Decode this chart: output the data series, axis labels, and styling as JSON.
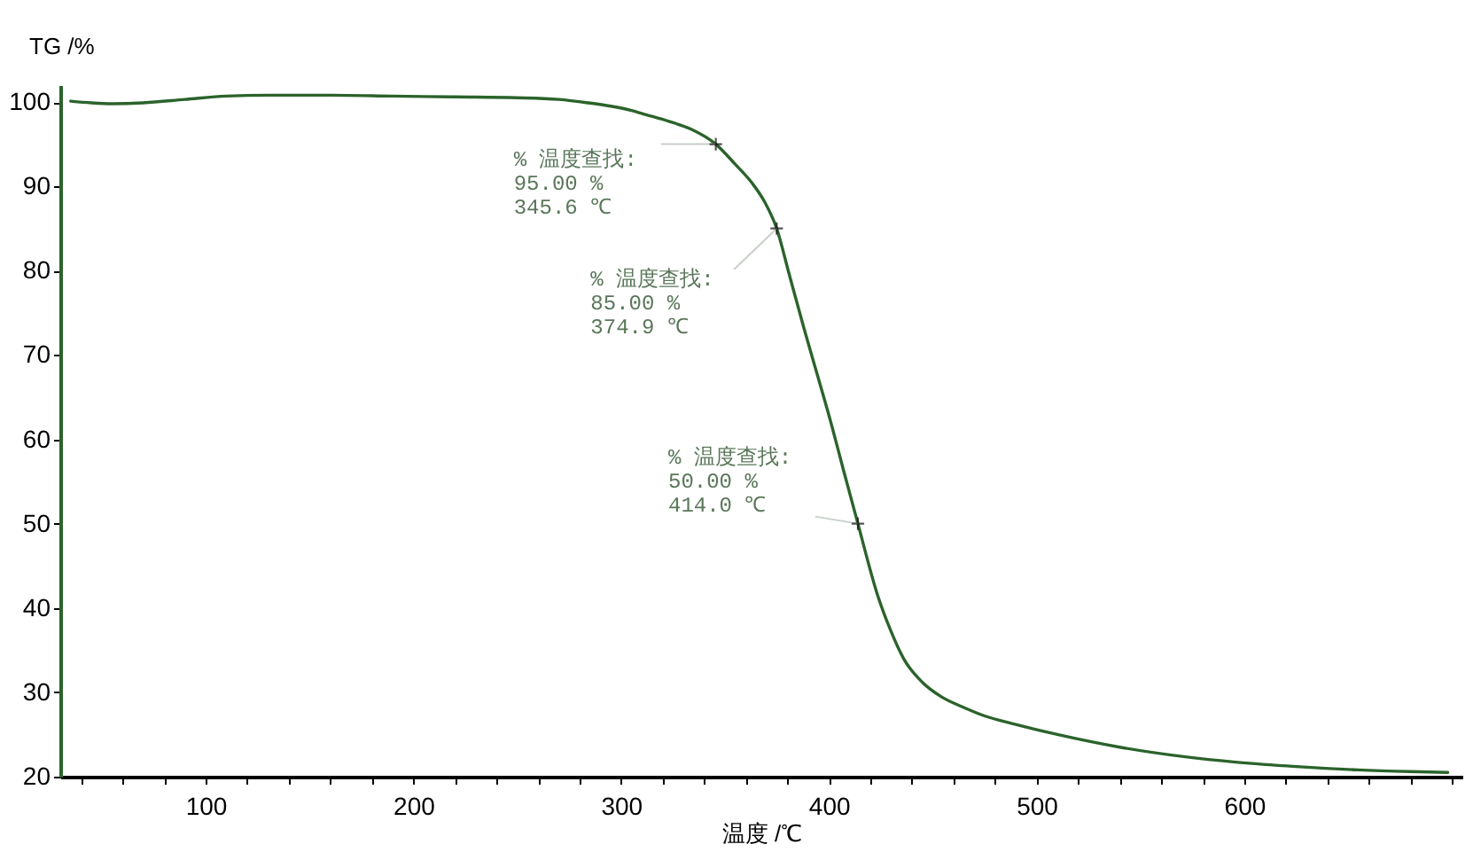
{
  "chart_data": {
    "type": "line",
    "xlabel": "温度 /℃",
    "ylabel": "TG /%",
    "x": [
      35,
      45,
      55,
      70,
      90,
      110,
      130,
      160,
      190,
      220,
      250,
      270,
      284,
      295,
      305,
      312,
      323,
      333.5,
      345.6,
      355,
      363,
      369,
      374.9,
      381,
      388,
      395,
      401,
      407,
      414,
      423.5,
      430,
      436,
      445,
      454,
      465,
      475,
      490,
      510,
      540,
      570,
      597,
      625,
      655,
      680,
      698
    ],
    "series": [
      {
        "color": "#2b632b",
        "values": [
          100.1,
          99.9,
          99.8,
          99.9,
          100.3,
          100.7,
          100.8,
          100.8,
          100.7,
          100.6,
          100.5,
          100.3,
          99.9,
          99.5,
          99.0,
          98.5,
          97.7,
          96.8,
          95.0,
          92.6,
          90.4,
          88.2,
          85.0,
          79.5,
          73.2,
          67.2,
          62.0,
          56.4,
          50.0,
          41.5,
          37.2,
          34.0,
          31.2,
          29.5,
          28.2,
          27.2,
          26.2,
          25.0,
          23.5,
          22.4,
          21.7,
          21.2,
          20.8,
          20.6,
          20.5
        ]
      }
    ],
    "xlim": [
      30,
      705
    ],
    "ylim": [
      20,
      102
    ],
    "xticks": [
      {
        "value": 40,
        "label": null
      },
      {
        "value": 60,
        "label": null
      },
      {
        "value": 80,
        "label": null
      },
      100,
      {
        "value": 120,
        "label": null
      },
      {
        "value": 140,
        "label": null
      },
      {
        "value": 160,
        "label": null
      },
      {
        "value": 180,
        "label": null
      },
      200,
      {
        "value": 220,
        "label": null
      },
      {
        "value": 240,
        "label": null
      },
      {
        "value": 260,
        "label": null
      },
      {
        "value": 280,
        "label": null
      },
      300,
      {
        "value": 320,
        "label": null
      },
      {
        "value": 340,
        "label": null
      },
      {
        "value": 360,
        "label": null
      },
      {
        "value": 380,
        "label": null
      },
      400,
      {
        "value": 420,
        "label": null
      },
      {
        "value": 440,
        "label": null
      },
      {
        "value": 460,
        "label": null
      },
      {
        "value": 480,
        "label": null
      },
      500,
      {
        "value": 520,
        "label": null
      },
      {
        "value": 540,
        "label": null
      },
      {
        "value": 560,
        "label": null
      },
      {
        "value": 580,
        "label": null
      },
      600,
      {
        "value": 620,
        "label": null
      },
      {
        "value": 640,
        "label": null
      },
      {
        "value": 660,
        "label": null
      },
      {
        "value": 680,
        "label": null
      },
      {
        "value": 700,
        "label": null
      }
    ],
    "yticks": [
      20,
      30,
      40,
      50,
      60,
      70,
      80,
      90,
      100
    ],
    "marker": "none",
    "line_style": "solid",
    "annotations": [
      {
        "text": "% 温度查找:\n 95.00 %\n345.6 ℃",
        "x": 345.6,
        "y": 95.0
      },
      {
        "text": "% 温度查找:\n 85.00 %\n374.9 ℃",
        "x": 374.9,
        "y": 85.0
      },
      {
        "text": "% 温度查找:\n 50.00 %\n414.0 ℃",
        "x": 414.0,
        "y": 50.0
      }
    ]
  }
}
